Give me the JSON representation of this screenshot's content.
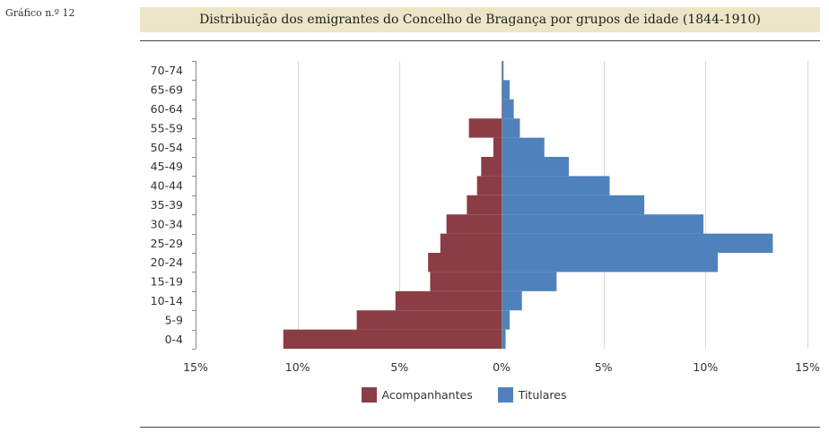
{
  "figure_label": "Gráfico n.º 12",
  "colors": {
    "left_series": "#8b3d45",
    "right_series": "#4f81bd",
    "grid": "#d9d9d9",
    "axis": "#888888",
    "title_band": "#ece6c6"
  },
  "chart_data": {
    "type": "bar",
    "orientation": "horizontal-diverging",
    "title": "Distribuição dos emigrantes do Concelho de Bragança por grupos de idade (1844-1910)",
    "categories": [
      "0-4",
      "5-9",
      "10-14",
      "15-19",
      "20-24",
      "25-29",
      "30-34",
      "35-39",
      "40-44",
      "45-49",
      "50-54",
      "55-59",
      "60-64",
      "65-69",
      "70-74"
    ],
    "series": [
      {
        "name": "Acompanhantes",
        "side": "left",
        "values": [
          10.7,
          7.1,
          5.2,
          3.5,
          3.6,
          3.0,
          2.7,
          1.7,
          1.2,
          1.0,
          0.4,
          1.6,
          0.0,
          0.0,
          0.0
        ]
      },
      {
        "name": "Titulares",
        "side": "right",
        "values": [
          0.2,
          0.4,
          1.0,
          2.7,
          10.6,
          13.3,
          9.9,
          7.0,
          5.3,
          3.3,
          2.1,
          0.9,
          0.6,
          0.4,
          0.1
        ]
      }
    ],
    "xlim": [
      -15,
      15
    ],
    "xticks": [
      -15,
      -10,
      -5,
      0,
      5,
      10,
      15
    ],
    "xtick_labels": [
      "15%",
      "10%",
      "5%",
      "0%",
      "5%",
      "10%",
      "15%"
    ],
    "grid": true,
    "legend_position": "bottom-center"
  }
}
